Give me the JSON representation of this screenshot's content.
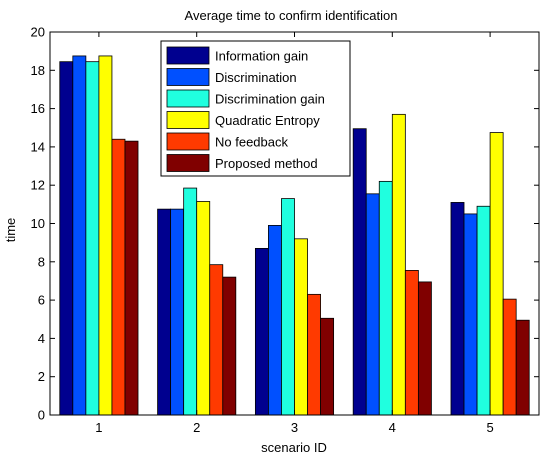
{
  "chart_data": {
    "type": "bar",
    "title": "Average time to confirm identification",
    "xlabel": "scenario ID",
    "ylabel": "time",
    "ylim": [
      0,
      20
    ],
    "yticks": [
      0,
      2,
      4,
      6,
      8,
      10,
      12,
      14,
      16,
      18,
      20
    ],
    "categories": [
      "1",
      "2",
      "3",
      "4",
      "5"
    ],
    "legend_position": "top-center",
    "grid": false,
    "series": [
      {
        "name": "Information gain",
        "color": "#00008f",
        "values": [
          18.45,
          10.75,
          8.7,
          14.95,
          11.1
        ]
      },
      {
        "name": "Discrimination",
        "color": "#0050ff",
        "values": [
          18.75,
          10.75,
          9.9,
          11.55,
          10.5
        ]
      },
      {
        "name": "Discrimination gain",
        "color": "#20ffdf",
        "values": [
          18.45,
          11.85,
          11.3,
          12.2,
          10.9
        ]
      },
      {
        "name": "Quadratic Entropy",
        "color": "#ffff00",
        "values": [
          18.75,
          11.15,
          9.2,
          15.7,
          14.75
        ]
      },
      {
        "name": "No feedback",
        "color": "#ff3a00",
        "values": [
          14.4,
          7.85,
          6.3,
          7.55,
          6.05
        ]
      },
      {
        "name": "Proposed method",
        "color": "#800000",
        "values": [
          14.3,
          7.2,
          5.05,
          6.95,
          4.95
        ]
      }
    ]
  }
}
